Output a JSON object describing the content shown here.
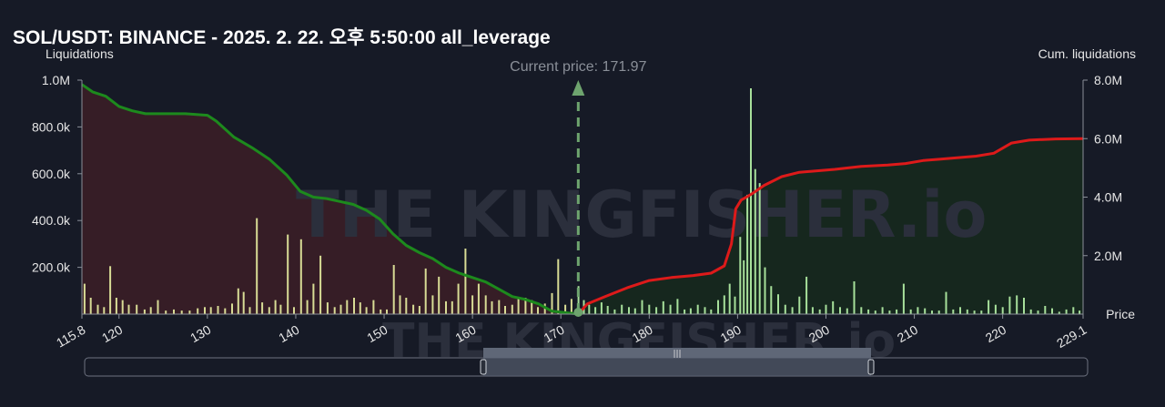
{
  "chart_data": {
    "type": "bar+line",
    "title": "SOL/USDT: BINANCE - 2025. 2. 22. 오후 5:50:00 all_leverage",
    "ylabel_left": "Liquidations",
    "ylabel_right": "Cum. liquidations",
    "xlabel": "Price",
    "watermark": "THE KINGFISHER.io",
    "current_price_label": "Current price: 171.97",
    "current_price": 171.97,
    "xlim": [
      115.8,
      229.1
    ],
    "ylim_left": [
      0,
      1000000
    ],
    "ylim_right": [
      0,
      8000000
    ],
    "x_ticks": [
      "115.8",
      "120",
      "130",
      "140",
      "150",
      "160",
      "170",
      "180",
      "190",
      "200",
      "210",
      "220",
      "229.1"
    ],
    "y_left_ticks": [
      "200.0k",
      "400.0k",
      "600.0k",
      "800.0k",
      "1.0M"
    ],
    "y_right_ticks": [
      "2.0M",
      "4.0M",
      "6.0M",
      "8.0M"
    ],
    "colors": {
      "long_cum_line": "#1d8a1d",
      "short_cum_line": "#dd1a1a",
      "long_fill": "#3a1e27",
      "short_fill": "#16281e",
      "long_bars": "#d8dc95",
      "short_bars": "#a7e09b",
      "current_price": "#6ea46e"
    },
    "series": [
      {
        "name": "long_liquidations",
        "x": [
          116.1,
          116.8,
          117.6,
          118.3,
          119.0,
          119.7,
          120.4,
          121.1,
          122.0,
          122.9,
          123.6,
          124.4,
          125.3,
          126.2,
          127.1,
          128.0,
          128.9,
          129.7,
          130.4,
          131.2,
          132.0,
          132.8,
          133.5,
          134.1,
          134.8,
          135.6,
          136.2,
          137.0,
          137.7,
          138.3,
          139.1,
          139.8,
          140.6,
          141.3,
          142.0,
          142.8,
          143.6,
          144.4,
          145.1,
          145.8,
          146.6,
          147.3,
          148.0,
          148.8,
          149.6,
          150.3,
          151.1,
          151.8,
          152.5,
          153.3,
          154.0,
          154.7,
          155.5,
          156.2,
          157.0,
          157.7,
          158.4,
          159.2,
          160.0,
          160.7,
          161.5,
          162.2,
          163.0,
          163.7,
          164.5,
          165.2,
          166.0,
          166.7,
          167.4,
          168.2,
          169.0,
          169.7,
          170.5,
          171.2
        ],
        "values": [
          130000,
          70000,
          40000,
          30000,
          205000,
          70000,
          60000,
          40000,
          40000,
          20000,
          30000,
          60000,
          15000,
          20000,
          15000,
          15000,
          25000,
          30000,
          30000,
          35000,
          25000,
          45000,
          110000,
          95000,
          30000,
          410000,
          50000,
          30000,
          60000,
          40000,
          340000,
          30000,
          320000,
          60000,
          130000,
          250000,
          50000,
          30000,
          40000,
          60000,
          70000,
          50000,
          30000,
          60000,
          20000,
          20000,
          210000,
          80000,
          70000,
          40000,
          35000,
          195000,
          80000,
          160000,
          55000,
          55000,
          130000,
          280000,
          80000,
          130000,
          80000,
          55000,
          60000,
          35000,
          40000,
          65000,
          70000,
          60000,
          30000,
          45000,
          90000,
          235000,
          40000,
          65000
        ]
      },
      {
        "name": "short_liquidations",
        "x": [
          172.0,
          172.6,
          173.2,
          173.9,
          174.6,
          175.3,
          176.1,
          176.9,
          177.7,
          178.4,
          179.2,
          180.0,
          180.8,
          181.6,
          182.4,
          183.2,
          184.0,
          184.7,
          185.5,
          186.3,
          187.0,
          187.8,
          188.5,
          189.1,
          189.7,
          190.3,
          190.7,
          191.1,
          191.5,
          192.0,
          192.5,
          193.1,
          193.8,
          194.6,
          195.4,
          196.2,
          197.0,
          197.8,
          198.5,
          199.3,
          200.0,
          200.8,
          201.6,
          202.4,
          203.2,
          204.0,
          204.8,
          205.6,
          206.4,
          207.2,
          208.0,
          208.8,
          209.6,
          210.4,
          211.2,
          212.0,
          212.8,
          213.6,
          214.4,
          215.2,
          216.0,
          216.8,
          217.6,
          218.4,
          219.2,
          220.0,
          220.8,
          221.6,
          222.4,
          223.2,
          224.0,
          224.8,
          225.6,
          226.4,
          227.2,
          228.0,
          228.7
        ],
        "values": [
          120000,
          60000,
          40000,
          30000,
          50000,
          35000,
          20000,
          40000,
          30000,
          25000,
          60000,
          40000,
          30000,
          55000,
          40000,
          65000,
          20000,
          25000,
          40000,
          30000,
          20000,
          60000,
          80000,
          130000,
          75000,
          330000,
          230000,
          510000,
          965000,
          620000,
          560000,
          200000,
          120000,
          85000,
          40000,
          30000,
          75000,
          160000,
          30000,
          20000,
          40000,
          55000,
          30000,
          25000,
          140000,
          30000,
          20000,
          15000,
          30000,
          15000,
          20000,
          130000,
          20000,
          30000,
          25000,
          15000,
          15000,
          95000,
          20000,
          30000,
          20000,
          15000,
          15000,
          60000,
          40000,
          30000,
          75000,
          80000,
          70000,
          20000,
          15000,
          35000,
          25000,
          10000,
          20000,
          30000,
          15000
        ]
      },
      {
        "name": "cum_long",
        "x": [
          115.8,
          117.0,
          118.5,
          120.0,
          121.5,
          123.0,
          125.0,
          127.5,
          130.0,
          131.0,
          133.0,
          135.0,
          137.0,
          139.0,
          140.5,
          142.0,
          143.5,
          145.0,
          146.5,
          148.0,
          149.5,
          151.0,
          152.5,
          154.0,
          155.5,
          157.0,
          158.5,
          160.0,
          161.5,
          163.0,
          164.5,
          166.0,
          167.5,
          169.0,
          170.5,
          171.97
        ],
        "values": [
          7.85,
          7.6,
          7.45,
          7.1,
          6.95,
          6.85,
          6.85,
          6.85,
          6.8,
          6.6,
          6.05,
          5.7,
          5.3,
          4.75,
          4.2,
          4.0,
          3.95,
          3.85,
          3.75,
          3.55,
          3.25,
          2.75,
          2.35,
          2.1,
          1.9,
          1.6,
          1.4,
          1.25,
          1.1,
          0.85,
          0.6,
          0.5,
          0.35,
          0.1,
          0.05,
          0.0
        ]
      },
      {
        "name": "cum_short",
        "x": [
          171.97,
          173.0,
          175.0,
          177.5,
          180.0,
          182.5,
          185.0,
          187.0,
          188.5,
          189.3,
          189.8,
          190.4,
          191.0,
          191.8,
          193.0,
          195.0,
          197.0,
          199.0,
          201.0,
          204.0,
          207.0,
          209.0,
          211.0,
          213.0,
          215.0,
          217.0,
          219.0,
          221.0,
          223.0,
          226.0,
          229.1
        ],
        "values": [
          0.0,
          0.35,
          0.6,
          0.9,
          1.15,
          1.25,
          1.32,
          1.4,
          1.65,
          2.4,
          3.6,
          3.9,
          4.0,
          4.15,
          4.4,
          4.7,
          4.85,
          4.9,
          4.95,
          5.05,
          5.1,
          5.15,
          5.25,
          5.3,
          5.35,
          5.4,
          5.5,
          5.85,
          5.95,
          5.99,
          6.0
        ]
      }
    ]
  }
}
